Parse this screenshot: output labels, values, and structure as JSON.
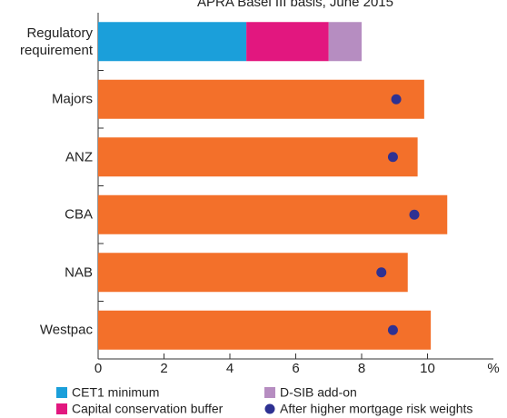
{
  "chart_data": {
    "type": "bar",
    "subtitle": "APRA Basel III basis, June 2015",
    "x_label": "%",
    "categories": [
      "Regulatory requirement",
      "Majors",
      "ANZ",
      "CBA",
      "NAB",
      "Westpac"
    ],
    "xlim": [
      0,
      12
    ],
    "xticks": [
      0,
      2,
      4,
      6,
      8,
      10
    ],
    "series": [
      {
        "name": "CET1 minimum",
        "color": "#1b9fda",
        "values": [
          4.5,
          null,
          null,
          null,
          null,
          null
        ]
      },
      {
        "name": "Capital conservation buffer",
        "color": "#e2177f",
        "values": [
          2.5,
          null,
          null,
          null,
          null,
          null
        ]
      },
      {
        "name": "D-SIB add-on",
        "color": "#b68dc1",
        "values": [
          1.0,
          null,
          null,
          null,
          null,
          null
        ]
      },
      {
        "color": "#f3702a",
        "values": [
          null,
          9.9,
          9.7,
          10.6,
          9.4,
          10.1
        ]
      },
      {
        "name": "After higher mortgage risk weights",
        "type": "scatter",
        "color": "#2e3192",
        "values": [
          null,
          9.05,
          8.95,
          9.6,
          8.6,
          8.95
        ]
      }
    ]
  }
}
